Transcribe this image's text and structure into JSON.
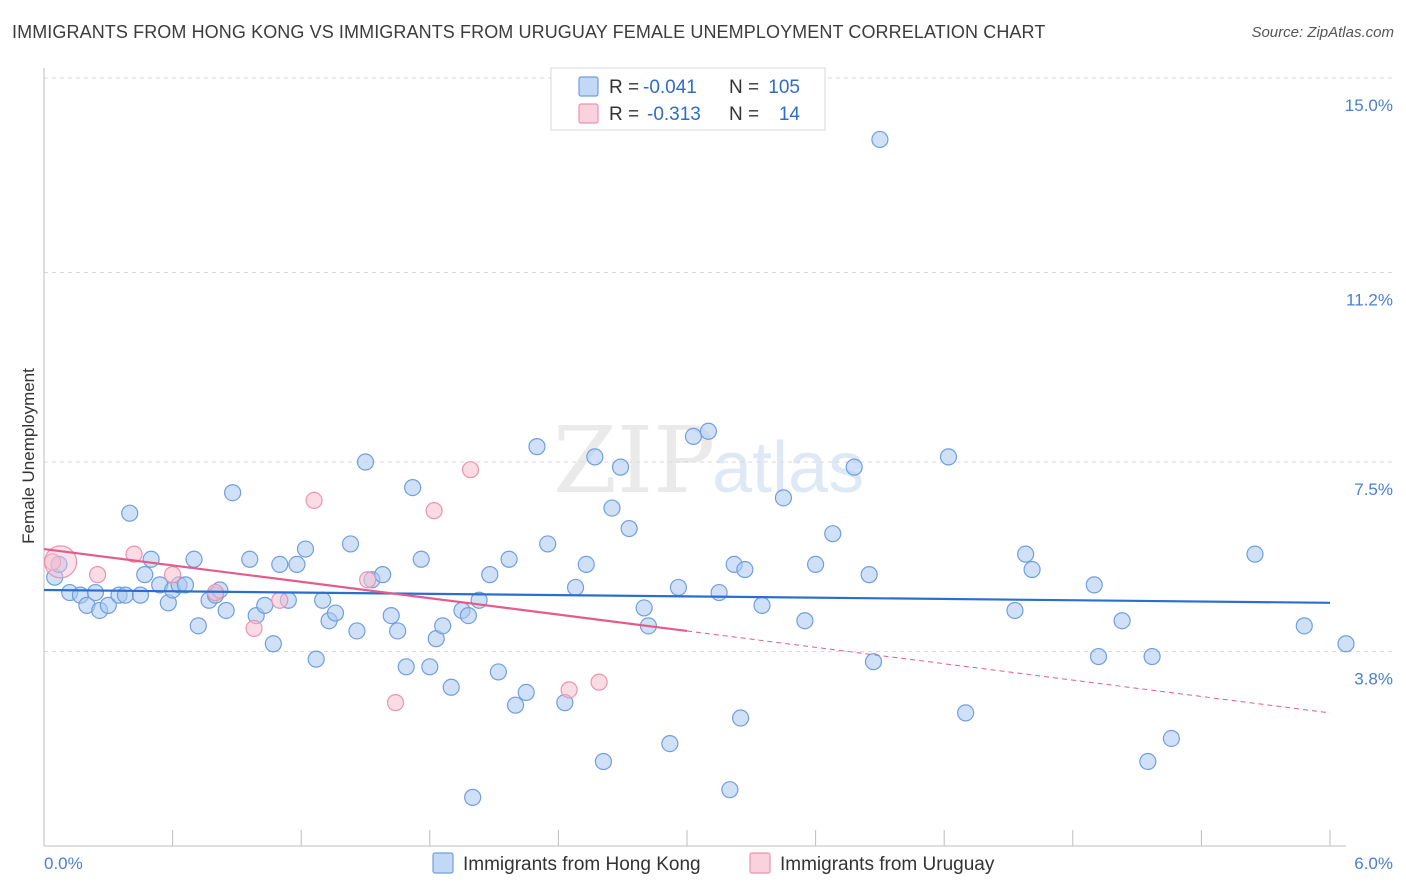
{
  "title": "IMMIGRANTS FROM HONG KONG VS IMMIGRANTS FROM URUGUAY FEMALE UNEMPLOYMENT CORRELATION CHART",
  "source": "Source: ZipAtlas.com",
  "watermark": {
    "part1": "ZIP",
    "part2": "atlas"
  },
  "colors": {
    "hong_kong_fill": "#a9c8f0",
    "hong_kong_stroke": "#6f9fe0",
    "hong_kong_line": "#2a6fcf",
    "uruguay_fill": "#f7bfd0",
    "uruguay_stroke": "#eb93b0",
    "uruguay_line": "#e45c8a",
    "grid": "#d9d9d9",
    "tick_label": "#4a7fd0"
  },
  "legend_top": {
    "rows": [
      {
        "r_label": "R =",
        "r_value": "-0.041",
        "n_label": "N =",
        "n_value": "105"
      },
      {
        "r_label": "R =",
        "r_value": "-0.313",
        "n_label": "N =",
        "n_value": "14"
      }
    ]
  },
  "chart_data": {
    "type": "scatter",
    "title": "IMMIGRANTS FROM HONG KONG VS IMMIGRANTS FROM URUGUAY FEMALE UNEMPLOYMENT CORRELATION CHART",
    "xlabel": "",
    "ylabel": "Female Unemployment",
    "xlim": [
      0.0,
      6.0
    ],
    "ylim": [
      0.0,
      15.0
    ],
    "x_tick_labels": [
      "0.0%",
      "6.0%"
    ],
    "y_ticks": [
      3.8,
      7.5,
      11.2,
      15.0
    ],
    "y_tick_labels": [
      "3.8%",
      "7.5%",
      "11.2%",
      "15.0%"
    ],
    "grid": true,
    "series": [
      {
        "name": "Immigrants from Hong Kong",
        "r": -0.041,
        "n": 105,
        "trend": {
          "x0": 0.0,
          "y0": 5.0,
          "x1": 6.0,
          "y1": 4.75
        },
        "points": [
          [
            0.05,
            5.25
          ],
          [
            0.07,
            5.5
          ],
          [
            0.12,
            4.95
          ],
          [
            0.17,
            4.9
          ],
          [
            0.2,
            4.7
          ],
          [
            0.24,
            4.95
          ],
          [
            0.26,
            4.6
          ],
          [
            0.3,
            4.7
          ],
          [
            0.35,
            4.9
          ],
          [
            0.38,
            4.9
          ],
          [
            0.4,
            6.5
          ],
          [
            0.45,
            4.9
          ],
          [
            0.47,
            5.3
          ],
          [
            0.5,
            5.6
          ],
          [
            0.54,
            5.1
          ],
          [
            0.58,
            4.75
          ],
          [
            0.6,
            5.0
          ],
          [
            0.63,
            5.1
          ],
          [
            0.66,
            5.1
          ],
          [
            0.7,
            5.6
          ],
          [
            0.72,
            4.3
          ],
          [
            0.77,
            4.8
          ],
          [
            0.8,
            4.9
          ],
          [
            0.82,
            5.0
          ],
          [
            0.85,
            4.6
          ],
          [
            0.88,
            6.9
          ],
          [
            0.96,
            5.6
          ],
          [
            0.99,
            4.5
          ],
          [
            1.03,
            4.7
          ],
          [
            1.07,
            3.95
          ],
          [
            1.1,
            5.5
          ],
          [
            1.14,
            4.8
          ],
          [
            1.18,
            5.5
          ],
          [
            1.22,
            5.8
          ],
          [
            1.27,
            3.65
          ],
          [
            1.3,
            4.8
          ],
          [
            1.33,
            4.4
          ],
          [
            1.36,
            4.55
          ],
          [
            1.43,
            5.9
          ],
          [
            1.46,
            4.2
          ],
          [
            1.5,
            7.5
          ],
          [
            1.53,
            5.2
          ],
          [
            1.58,
            5.3
          ],
          [
            1.62,
            4.5
          ],
          [
            1.65,
            4.2
          ],
          [
            1.69,
            3.5
          ],
          [
            1.72,
            7.0
          ],
          [
            1.76,
            5.6
          ],
          [
            1.8,
            3.5
          ],
          [
            1.83,
            4.05
          ],
          [
            1.86,
            4.3
          ],
          [
            1.9,
            3.1
          ],
          [
            1.95,
            4.6
          ],
          [
            1.98,
            4.5
          ],
          [
            2.03,
            4.8
          ],
          [
            2.08,
            5.3
          ],
          [
            2.12,
            3.4
          ],
          [
            2.17,
            5.6
          ],
          [
            2.2,
            2.75
          ],
          [
            2.25,
            3.0
          ],
          [
            2.3,
            7.8
          ],
          [
            2.35,
            5.9
          ],
          [
            2.43,
            2.8
          ],
          [
            2.48,
            5.05
          ],
          [
            2.53,
            5.5
          ],
          [
            2.57,
            7.6
          ],
          [
            2.61,
            1.65
          ],
          [
            2.65,
            6.6
          ],
          [
            2.69,
            7.4
          ],
          [
            2.73,
            6.2
          ],
          [
            2.8,
            4.65
          ],
          [
            2.82,
            4.3
          ],
          [
            2.92,
            2.0
          ],
          [
            2.96,
            5.05
          ],
          [
            3.03,
            8.0
          ],
          [
            3.1,
            8.1
          ],
          [
            3.15,
            4.95
          ],
          [
            3.22,
            5.5
          ],
          [
            3.25,
            2.5
          ],
          [
            3.27,
            5.4
          ],
          [
            3.35,
            4.7
          ],
          [
            3.45,
            6.8
          ],
          [
            3.55,
            4.4
          ],
          [
            3.6,
            5.5
          ],
          [
            3.68,
            6.1
          ],
          [
            3.78,
            7.4
          ],
          [
            3.85,
            5.3
          ],
          [
            3.87,
            3.6
          ],
          [
            3.9,
            13.8
          ],
          [
            4.22,
            7.6
          ],
          [
            4.3,
            2.6
          ],
          [
            4.53,
            4.6
          ],
          [
            4.58,
            5.7
          ],
          [
            4.61,
            5.4
          ],
          [
            4.9,
            5.1
          ],
          [
            4.92,
            3.7
          ],
          [
            5.03,
            4.4
          ],
          [
            5.15,
            1.65
          ],
          [
            5.17,
            3.7
          ],
          [
            5.26,
            2.1
          ],
          [
            5.65,
            5.7
          ],
          [
            5.88,
            4.3
          ],
          [
            6.1,
            3.95
          ],
          [
            2.0,
            0.95
          ],
          [
            3.2,
            1.1
          ]
        ]
      },
      {
        "name": "Immigrants from Uruguay",
        "r": -0.313,
        "n": 14,
        "trend": {
          "x0": 0.0,
          "y0": 5.8,
          "x1": 3.0,
          "y1": 4.2
        },
        "trend_dashed": {
          "x0": 3.0,
          "y0": 4.2,
          "x1": 6.0,
          "y1": 2.6
        },
        "points": [
          [
            0.04,
            5.55
          ],
          [
            0.25,
            5.3
          ],
          [
            0.42,
            5.7
          ],
          [
            0.6,
            5.3
          ],
          [
            0.8,
            4.95
          ],
          [
            0.98,
            4.25
          ],
          [
            1.1,
            4.8
          ],
          [
            1.26,
            6.75
          ],
          [
            1.51,
            5.2
          ],
          [
            1.64,
            2.8
          ],
          [
            1.82,
            6.55
          ],
          [
            1.99,
            7.35
          ],
          [
            2.45,
            3.05
          ],
          [
            2.59,
            3.2
          ]
        ]
      }
    ]
  },
  "legend_bottom": {
    "items": [
      {
        "label": "Immigrants from Hong Kong"
      },
      {
        "label": "Immigrants from Uruguay"
      }
    ]
  }
}
